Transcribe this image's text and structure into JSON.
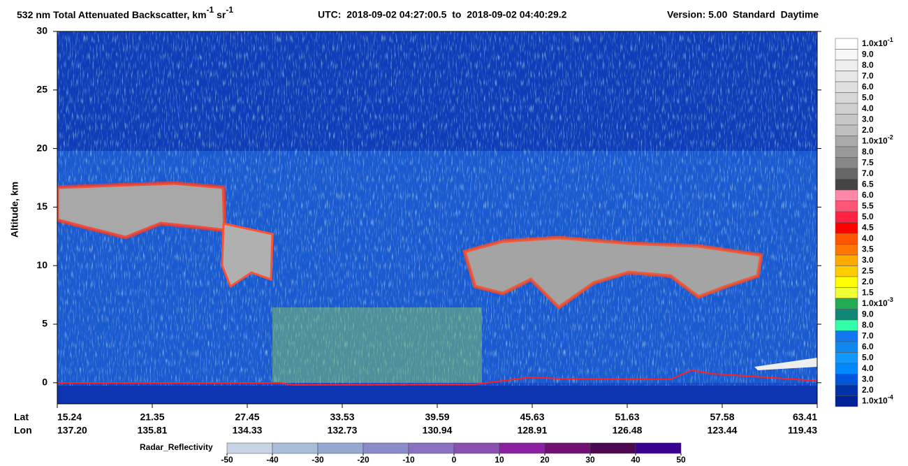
{
  "chart_data": {
    "type": "heatmap",
    "title": {
      "text": "532 nm Total Attenuated Backscatter, km",
      "exp1": "-1",
      "sr": " sr",
      "exp2": "-1",
      "utc": "UTC:  2018-09-02 04:27:00.5  to  2018-09-02 04:40:29.2",
      "version": "Version: 5.00  Standard  Daytime"
    },
    "y_label": "Altitude, km",
    "ylim": [
      -1.8,
      30
    ],
    "yticks": [
      0,
      5,
      10,
      15,
      20,
      25,
      30
    ],
    "x_rows": [
      {
        "name": "Lat",
        "labels": [
          "15.24",
          "21.35",
          "27.45",
          "33.53",
          "39.59",
          "45.63",
          "51.63",
          "57.58",
          "63.41"
        ]
      },
      {
        "name": "Lon",
        "labels": [
          "137.20",
          "135.81",
          "134.33",
          "132.73",
          "130.94",
          "128.91",
          "126.48",
          "123.44",
          "119.43"
        ]
      }
    ],
    "colorbar": {
      "labels": [
        {
          "text": "1.0x10",
          "exp": "-1"
        },
        "9.0",
        "8.0",
        "7.0",
        "6.0",
        "5.0",
        "4.0",
        "3.0",
        "2.0",
        {
          "text": "1.0x10",
          "exp": "-2"
        },
        "8.0",
        "7.5",
        "7.0",
        "6.5",
        "6.0",
        "5.5",
        "5.0",
        "4.5",
        "4.0",
        "3.5",
        "3.0",
        "2.5",
        "2.0",
        "1.5",
        {
          "text": "1.0x10",
          "exp": "-3"
        },
        "9.0",
        "8.0",
        "7.0",
        "6.0",
        "5.0",
        "4.0",
        "3.0",
        "2.0",
        {
          "text": "1.0x10",
          "exp": "-4"
        }
      ],
      "colors": [
        "#ffffff",
        "#f7f7f7",
        "#efefef",
        "#e7e7e7",
        "#dfdfdf",
        "#d7d7d7",
        "#cfcfcf",
        "#c7c7c7",
        "#bfbfbf",
        "#aaaaaa",
        "#999999",
        "#888888",
        "#666666",
        "#444444",
        "#ff88aa",
        "#ff5577",
        "#ff2244",
        "#ff0000",
        "#ff5500",
        "#ff7700",
        "#ffaa00",
        "#ffcc00",
        "#ffff00",
        "#eeff33",
        "#22aa55",
        "#118877",
        "#33ffaa",
        "#1177ee",
        "#1188ee",
        "#1199ff",
        "#0088ff",
        "#0055dd",
        "#0033aa",
        "#002299"
      ]
    },
    "radar_colorbar": {
      "label": "Radar_Reflectivity",
      "range": [
        -50,
        50
      ],
      "ticks": [
        -50,
        -40,
        -30,
        -20,
        -10,
        0,
        10,
        20,
        30,
        40,
        50
      ],
      "colors": [
        "#c8d4e4",
        "#a9bcd8",
        "#95a8d0",
        "#8a8cc8",
        "#8a70c0",
        "#8a50b0",
        "#8a20a0",
        "#701070",
        "#4a0850",
        "#3a0090"
      ]
    }
  }
}
